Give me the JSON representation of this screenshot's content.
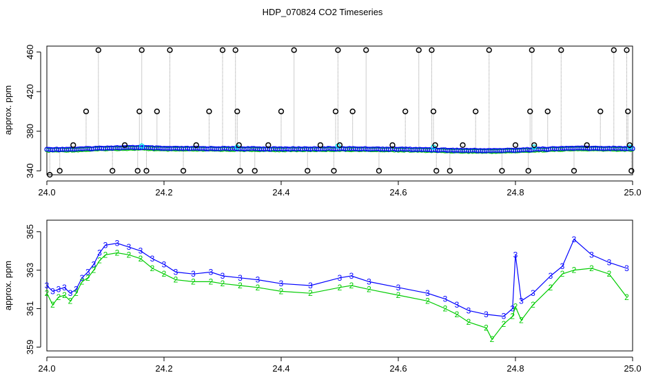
{
  "title": "HDP_070824  CO2 Timeseries",
  "chart_data": [
    {
      "type": "scatter",
      "panel": "top",
      "ylabel": "approx. ppm",
      "xlim": [
        24.0,
        25.0
      ],
      "ylim": [
        336,
        466
      ],
      "xticks": [
        "24.0",
        "24.2",
        "24.4",
        "24.6",
        "24.8",
        "25.0"
      ],
      "yticks": [
        "340",
        "380",
        "420",
        "460"
      ],
      "tick_values_x": [
        24.0,
        24.2,
        24.4,
        24.6,
        24.8,
        25.0
      ],
      "tick_values_y": [
        340,
        380,
        420,
        460
      ],
      "colors": {
        "spike": "#000000",
        "series_a": "#0000ff",
        "series_b": "#00cc00",
        "cyan": "#00e5ee",
        "dropline": "#999999"
      },
      "baseline_profile": {
        "x": [
          24.0,
          24.05,
          24.1,
          24.16,
          24.2,
          24.3,
          24.4,
          24.5,
          24.6,
          24.66,
          24.7,
          24.76,
          24.8,
          24.83,
          24.9,
          25.0
        ],
        "y": [
          361.5,
          361.8,
          363,
          363.5,
          362.5,
          362.4,
          362,
          362.3,
          361.8,
          361.2,
          360.6,
          360.3,
          360.8,
          361.5,
          362.8,
          362.4
        ]
      },
      "spikes": [
        {
          "x": 24.005,
          "y": 336
        },
        {
          "x": 24.022,
          "y": 340
        },
        {
          "x": 24.045,
          "y": 366
        },
        {
          "x": 24.067,
          "y": 400
        },
        {
          "x": 24.088,
          "y": 462
        },
        {
          "x": 24.112,
          "y": 340
        },
        {
          "x": 24.133,
          "y": 366
        },
        {
          "x": 24.155,
          "y": 340
        },
        {
          "x": 24.158,
          "y": 400
        },
        {
          "x": 24.162,
          "y": 462
        },
        {
          "x": 24.17,
          "y": 340
        },
        {
          "x": 24.188,
          "y": 400
        },
        {
          "x": 24.21,
          "y": 462
        },
        {
          "x": 24.233,
          "y": 340
        },
        {
          "x": 24.255,
          "y": 366
        },
        {
          "x": 24.277,
          "y": 400
        },
        {
          "x": 24.3,
          "y": 462
        },
        {
          "x": 24.322,
          "y": 462
        },
        {
          "x": 24.325,
          "y": 400
        },
        {
          "x": 24.328,
          "y": 366
        },
        {
          "x": 24.33,
          "y": 340
        },
        {
          "x": 24.355,
          "y": 340
        },
        {
          "x": 24.378,
          "y": 366
        },
        {
          "x": 24.4,
          "y": 400
        },
        {
          "x": 24.422,
          "y": 462
        },
        {
          "x": 24.445,
          "y": 340
        },
        {
          "x": 24.467,
          "y": 366
        },
        {
          "x": 24.49,
          "y": 340
        },
        {
          "x": 24.493,
          "y": 400
        },
        {
          "x": 24.497,
          "y": 462
        },
        {
          "x": 24.5,
          "y": 366
        },
        {
          "x": 24.522,
          "y": 400
        },
        {
          "x": 24.545,
          "y": 462
        },
        {
          "x": 24.567,
          "y": 340
        },
        {
          "x": 24.59,
          "y": 366
        },
        {
          "x": 24.612,
          "y": 400
        },
        {
          "x": 24.635,
          "y": 462
        },
        {
          "x": 24.657,
          "y": 462
        },
        {
          "x": 24.66,
          "y": 400
        },
        {
          "x": 24.663,
          "y": 366
        },
        {
          "x": 24.665,
          "y": 340
        },
        {
          "x": 24.688,
          "y": 340
        },
        {
          "x": 24.71,
          "y": 366
        },
        {
          "x": 24.732,
          "y": 400
        },
        {
          "x": 24.755,
          "y": 462
        },
        {
          "x": 24.777,
          "y": 340
        },
        {
          "x": 24.8,
          "y": 366
        },
        {
          "x": 24.822,
          "y": 340
        },
        {
          "x": 24.825,
          "y": 400
        },
        {
          "x": 24.828,
          "y": 462
        },
        {
          "x": 24.832,
          "y": 366
        },
        {
          "x": 24.855,
          "y": 400
        },
        {
          "x": 24.878,
          "y": 462
        },
        {
          "x": 24.9,
          "y": 340
        },
        {
          "x": 24.922,
          "y": 366
        },
        {
          "x": 24.945,
          "y": 400
        },
        {
          "x": 24.968,
          "y": 462
        },
        {
          "x": 24.99,
          "y": 462
        },
        {
          "x": 24.992,
          "y": 400
        },
        {
          "x": 24.995,
          "y": 366
        },
        {
          "x": 24.998,
          "y": 340
        }
      ],
      "cyan_points": [
        {
          "x": 24.162,
          "y": 365
        },
        {
          "x": 24.325,
          "y": 364
        },
        {
          "x": 24.497,
          "y": 365
        },
        {
          "x": 24.66,
          "y": 364
        },
        {
          "x": 24.832,
          "y": 364
        },
        {
          "x": 24.995,
          "y": 364
        }
      ]
    },
    {
      "type": "line",
      "panel": "bottom",
      "ylabel": "approx. ppm",
      "xlim": [
        24.0,
        25.0
      ],
      "ylim": [
        358.8,
        365.6
      ],
      "xticks": [
        "24.0",
        "24.2",
        "24.4",
        "24.6",
        "24.8",
        "25.0"
      ],
      "yticks": [
        "359",
        "361",
        "363",
        "365"
      ],
      "tick_values_x": [
        24.0,
        24.2,
        24.4,
        24.6,
        24.8,
        25.0
      ],
      "tick_values_y": [
        359,
        361,
        363,
        365
      ],
      "colors": {
        "series_3": "#0000ff",
        "series_2": "#00cc00"
      },
      "series": [
        {
          "label": "3",
          "x": [
            24.0,
            24.01,
            24.02,
            24.03,
            24.04,
            24.05,
            24.06,
            24.07,
            24.08,
            24.09,
            24.1,
            24.12,
            24.14,
            24.16,
            24.18,
            24.2,
            24.22,
            24.25,
            24.28,
            24.3,
            24.33,
            24.36,
            24.4,
            24.45,
            24.5,
            24.52,
            24.55,
            24.6,
            24.65,
            24.68,
            24.7,
            24.72,
            24.75,
            24.78,
            24.795,
            24.8,
            24.81,
            24.83,
            24.86,
            24.88,
            24.9,
            24.93,
            24.96,
            24.99
          ],
          "y": [
            362.2,
            361.9,
            362.0,
            362.1,
            361.8,
            362.0,
            362.6,
            362.9,
            363.3,
            363.9,
            364.3,
            364.4,
            364.2,
            364.0,
            363.6,
            363.3,
            362.9,
            362.8,
            362.9,
            362.7,
            362.6,
            362.5,
            362.3,
            362.2,
            362.6,
            362.7,
            362.4,
            362.1,
            361.8,
            361.5,
            361.2,
            360.9,
            360.7,
            360.6,
            361.0,
            363.8,
            361.4,
            361.8,
            362.7,
            363.2,
            364.6,
            363.8,
            363.4,
            363.1
          ]
        },
        {
          "label": "2",
          "x": [
            24.0,
            24.01,
            24.02,
            24.03,
            24.04,
            24.05,
            24.06,
            24.07,
            24.08,
            24.09,
            24.1,
            24.12,
            24.14,
            24.16,
            24.18,
            24.2,
            24.22,
            24.25,
            24.28,
            24.3,
            24.33,
            24.36,
            24.4,
            24.45,
            24.5,
            24.52,
            24.55,
            24.6,
            24.65,
            24.68,
            24.7,
            24.72,
            24.75,
            24.76,
            24.78,
            24.795,
            24.8,
            24.81,
            24.83,
            24.86,
            24.88,
            24.9,
            24.93,
            24.96,
            24.99
          ],
          "y": [
            361.8,
            361.2,
            361.6,
            361.7,
            361.4,
            361.8,
            362.4,
            362.6,
            363.0,
            363.5,
            363.8,
            363.9,
            363.8,
            363.6,
            363.1,
            362.8,
            362.5,
            362.4,
            362.4,
            362.3,
            362.2,
            362.1,
            361.9,
            361.8,
            362.1,
            362.2,
            362.0,
            361.7,
            361.4,
            361.0,
            360.7,
            360.3,
            360.0,
            359.4,
            360.2,
            360.6,
            361.1,
            360.4,
            361.2,
            362.1,
            362.8,
            363.0,
            363.1,
            362.8,
            361.6
          ]
        }
      ]
    }
  ]
}
